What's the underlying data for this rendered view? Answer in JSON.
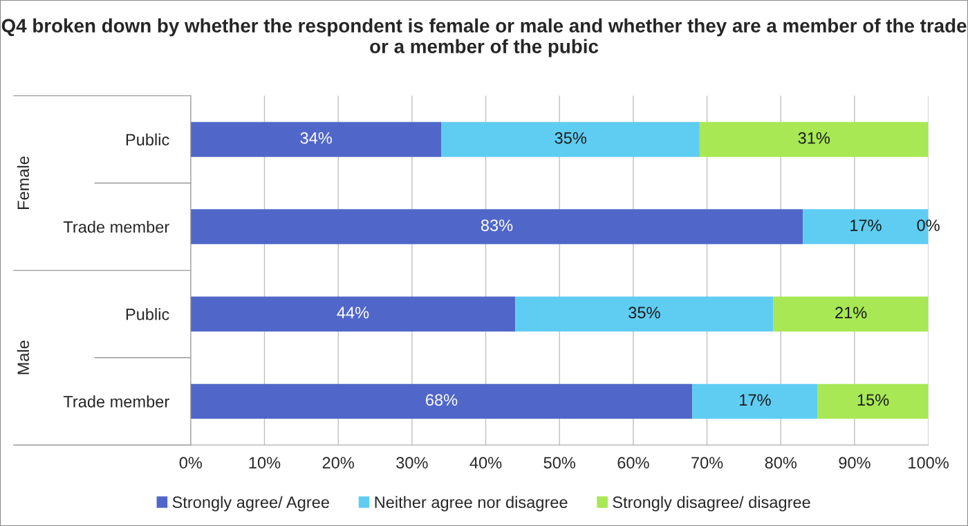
{
  "chart_data": {
    "type": "bar",
    "orientation": "horizontal",
    "stacked": true,
    "title": "Q4 broken down by whether the respondent is female or male and whether they are a member of the trade or a member of the pubic",
    "categories": [
      "Public",
      "Trade member",
      "Public",
      "Trade member"
    ],
    "annotations": [
      "Female",
      "Male"
    ],
    "series": [
      {
        "name": "Strongly agree/ Agree",
        "color": "#5067c9",
        "values": [
          34,
          83,
          44,
          68
        ],
        "value_labels": [
          "34%",
          "83%",
          "44%",
          "68%"
        ]
      },
      {
        "name": "Neither agree nor disagree",
        "color": "#5fcdf2",
        "values": [
          35,
          17,
          35,
          17
        ],
        "value_labels": [
          "35%",
          "17%",
          "35%",
          "17%"
        ]
      },
      {
        "name": "Strongly disagree/ disagree",
        "color": "#a7e854",
        "values": [
          31,
          0,
          21,
          15
        ],
        "value_labels": [
          "31%",
          "0%",
          "21%",
          "15%"
        ]
      }
    ],
    "xlim": [
      0,
      100
    ],
    "xticks": [
      {
        "value": 0,
        "label": "0%"
      },
      {
        "value": 10,
        "label": "10%"
      },
      {
        "value": 20,
        "label": "20%"
      },
      {
        "value": 30,
        "label": "30%"
      },
      {
        "value": 40,
        "label": "40%"
      },
      {
        "value": 50,
        "label": "50%"
      },
      {
        "value": 60,
        "label": "60%"
      },
      {
        "value": 70,
        "label": "70%"
      },
      {
        "value": 80,
        "label": "80%"
      },
      {
        "value": 90,
        "label": "90%"
      },
      {
        "value": 100,
        "label": "100%"
      }
    ],
    "grid": "x",
    "legend": "bottom"
  }
}
